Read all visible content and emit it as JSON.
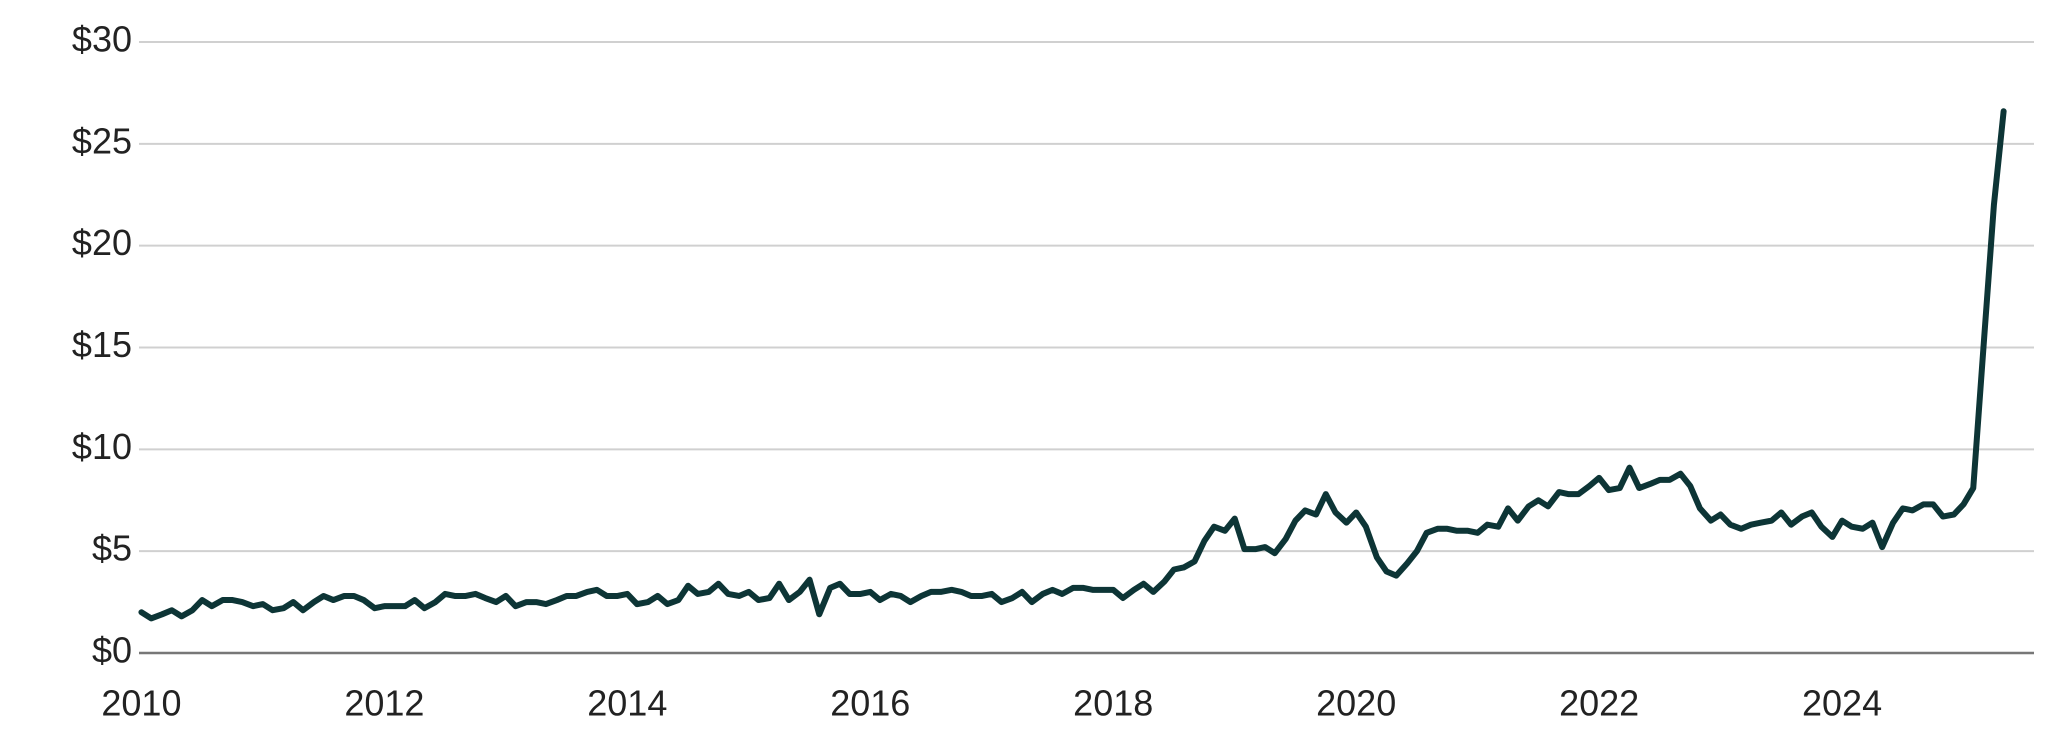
{
  "chart_data": {
    "type": "line",
    "x": [
      2010.0,
      2010.08,
      2010.17,
      2010.25,
      2010.33,
      2010.42,
      2010.5,
      2010.58,
      2010.67,
      2010.75,
      2010.83,
      2010.92,
      2011.0,
      2011.08,
      2011.17,
      2011.25,
      2011.33,
      2011.42,
      2011.5,
      2011.58,
      2011.67,
      2011.75,
      2011.83,
      2011.92,
      2012.0,
      2012.08,
      2012.17,
      2012.25,
      2012.33,
      2012.42,
      2012.5,
      2012.58,
      2012.67,
      2012.75,
      2012.83,
      2012.92,
      2013.0,
      2013.08,
      2013.17,
      2013.25,
      2013.33,
      2013.42,
      2013.5,
      2013.58,
      2013.67,
      2013.75,
      2013.83,
      2013.92,
      2014.0,
      2014.08,
      2014.17,
      2014.25,
      2014.33,
      2014.42,
      2014.5,
      2014.58,
      2014.67,
      2014.75,
      2014.83,
      2014.92,
      2015.0,
      2015.08,
      2015.17,
      2015.25,
      2015.33,
      2015.42,
      2015.5,
      2015.58,
      2015.67,
      2015.75,
      2015.83,
      2015.92,
      2016.0,
      2016.08,
      2016.17,
      2016.25,
      2016.33,
      2016.42,
      2016.5,
      2016.58,
      2016.67,
      2016.75,
      2016.83,
      2016.92,
      2017.0,
      2017.08,
      2017.17,
      2017.25,
      2017.33,
      2017.42,
      2017.5,
      2017.58,
      2017.67,
      2017.75,
      2017.83,
      2017.92,
      2018.0,
      2018.08,
      2018.17,
      2018.25,
      2018.33,
      2018.42,
      2018.5,
      2018.58,
      2018.67,
      2018.75,
      2018.83,
      2018.92,
      2019.0,
      2019.08,
      2019.17,
      2019.25,
      2019.33,
      2019.42,
      2019.5,
      2019.58,
      2019.67,
      2019.75,
      2019.83,
      2019.92,
      2020.0,
      2020.08,
      2020.17,
      2020.25,
      2020.33,
      2020.42,
      2020.5,
      2020.58,
      2020.67,
      2020.75,
      2020.83,
      2020.92,
      2021.0,
      2021.08,
      2021.17,
      2021.25,
      2021.33,
      2021.42,
      2021.5,
      2021.58,
      2021.67,
      2021.75,
      2021.83,
      2021.92,
      2022.0,
      2022.08,
      2022.17,
      2022.25,
      2022.33,
      2022.42,
      2022.5,
      2022.58,
      2022.67,
      2022.75,
      2022.83,
      2022.92,
      2023.0,
      2023.08,
      2023.17,
      2023.25,
      2023.33,
      2023.42,
      2023.5,
      2023.58,
      2023.67,
      2023.75,
      2023.83,
      2023.92,
      2024.0,
      2024.08,
      2024.17,
      2024.25,
      2024.33,
      2024.42,
      2024.5,
      2024.58,
      2024.67,
      2024.75,
      2024.83,
      2024.92,
      2025.0,
      2025.08,
      2025.17,
      2025.25,
      2025.33
    ],
    "series": [
      {
        "color": "#0d3536",
        "values": [
          2.0,
          1.7,
          1.9,
          2.1,
          1.8,
          2.1,
          2.6,
          2.3,
          2.6,
          2.6,
          2.5,
          2.3,
          2.4,
          2.1,
          2.2,
          2.5,
          2.1,
          2.5,
          2.8,
          2.6,
          2.8,
          2.8,
          2.6,
          2.2,
          2.3,
          2.3,
          2.3,
          2.6,
          2.2,
          2.5,
          2.9,
          2.8,
          2.8,
          2.9,
          2.7,
          2.5,
          2.8,
          2.3,
          2.5,
          2.5,
          2.4,
          2.6,
          2.8,
          2.8,
          3.0,
          3.1,
          2.8,
          2.8,
          2.9,
          2.4,
          2.5,
          2.8,
          2.4,
          2.6,
          3.3,
          2.9,
          3.0,
          3.4,
          2.9,
          2.8,
          3.0,
          2.6,
          2.7,
          3.4,
          2.6,
          3.0,
          3.6,
          1.9,
          3.2,
          3.4,
          2.9,
          2.9,
          3.0,
          2.6,
          2.9,
          2.8,
          2.5,
          2.8,
          3.0,
          3.0,
          3.1,
          3.0,
          2.8,
          2.8,
          2.9,
          2.5,
          2.7,
          3.0,
          2.5,
          2.9,
          3.1,
          2.9,
          3.2,
          3.2,
          3.1,
          3.1,
          3.1,
          2.7,
          3.1,
          3.4,
          3.0,
          3.5,
          4.1,
          4.2,
          4.5,
          5.5,
          6.2,
          6.0,
          6.6,
          5.1,
          5.1,
          5.2,
          4.9,
          5.6,
          6.5,
          7.0,
          6.8,
          7.8,
          6.9,
          6.4,
          6.9,
          6.2,
          4.7,
          4.0,
          3.8,
          4.4,
          5.0,
          5.9,
          6.1,
          6.1,
          6.0,
          6.0,
          5.9,
          6.3,
          6.2,
          7.1,
          6.5,
          7.2,
          7.5,
          7.2,
          7.9,
          7.8,
          7.8,
          8.2,
          8.6,
          8.0,
          8.1,
          9.1,
          8.1,
          8.3,
          8.5,
          8.5,
          8.8,
          8.2,
          7.1,
          6.5,
          6.8,
          6.3,
          6.1,
          6.3,
          6.4,
          6.5,
          6.9,
          6.3,
          6.7,
          6.9,
          6.2,
          5.7,
          6.5,
          6.2,
          6.1,
          6.4,
          5.2,
          6.4,
          7.1,
          7.0,
          7.3,
          7.3,
          6.7,
          6.8,
          7.3,
          8.1,
          15.5,
          22.0,
          26.6
        ]
      }
    ],
    "xlim": [
      2009.98,
      2025.58
    ],
    "xticks": [
      2010,
      2012,
      2014,
      2016,
      2018,
      2020,
      2022,
      2024
    ],
    "ylim": [
      0,
      30
    ],
    "yticks": [
      {
        "value": 0,
        "label": "$0"
      },
      {
        "value": 5,
        "label": "$5"
      },
      {
        "value": 10,
        "label": "$10"
      },
      {
        "value": 15,
        "label": "$15"
      },
      {
        "value": 20,
        "label": "$20"
      },
      {
        "value": 25,
        "label": "$25"
      },
      {
        "value": 30,
        "label": "$30"
      }
    ],
    "grid": true
  }
}
